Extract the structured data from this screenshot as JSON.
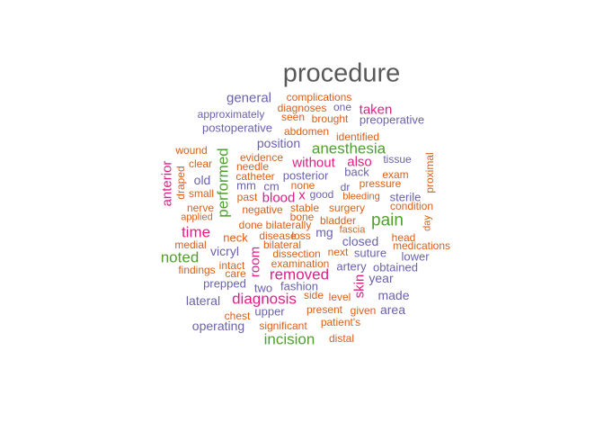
{
  "palette": {
    "gray": "#595959",
    "green": "#4ea12f",
    "purple": "#6a62ad",
    "orange": "#d95f1a",
    "pink": "#e01f86"
  },
  "words": [
    "procedure",
    "general",
    "complications",
    "diagnoses",
    "one",
    "taken",
    "approximately",
    "seen",
    "brought",
    "preoperative",
    "postoperative",
    "abdomen",
    "identified",
    "position",
    "anesthesia",
    "wound",
    "evidence",
    "without",
    "also",
    "tissue",
    "clear",
    "needle",
    "posterior",
    "back",
    "exam",
    "anterior",
    "draped",
    "catheter",
    "old",
    "mm",
    "cm",
    "none",
    "dr",
    "pressure",
    "proximal",
    "performed",
    "small",
    "past",
    "blood",
    "x",
    "good",
    "bleeding",
    "sterile",
    "nerve",
    "negative",
    "stable",
    "surgery",
    "condition",
    "applied",
    "bone",
    "done",
    "bilaterally",
    "bladder",
    "fascia",
    "pain",
    "day",
    "time",
    "neck",
    "disease",
    "loss",
    "mg",
    "closed",
    "head",
    "medial",
    "bilateral",
    "medications",
    "vicryl",
    "noted",
    "room",
    "dissection",
    "next",
    "suture",
    "lower",
    "intact",
    "examination",
    "artery",
    "obtained",
    "findings",
    "care",
    "removed",
    "year",
    "prepped",
    "two",
    "fashion",
    "skin",
    "lateral",
    "diagnosis",
    "side",
    "level",
    "made",
    "chest",
    "upper",
    "present",
    "given",
    "area",
    "operating",
    "significant",
    "patient's",
    "incision",
    "distal"
  ]
}
